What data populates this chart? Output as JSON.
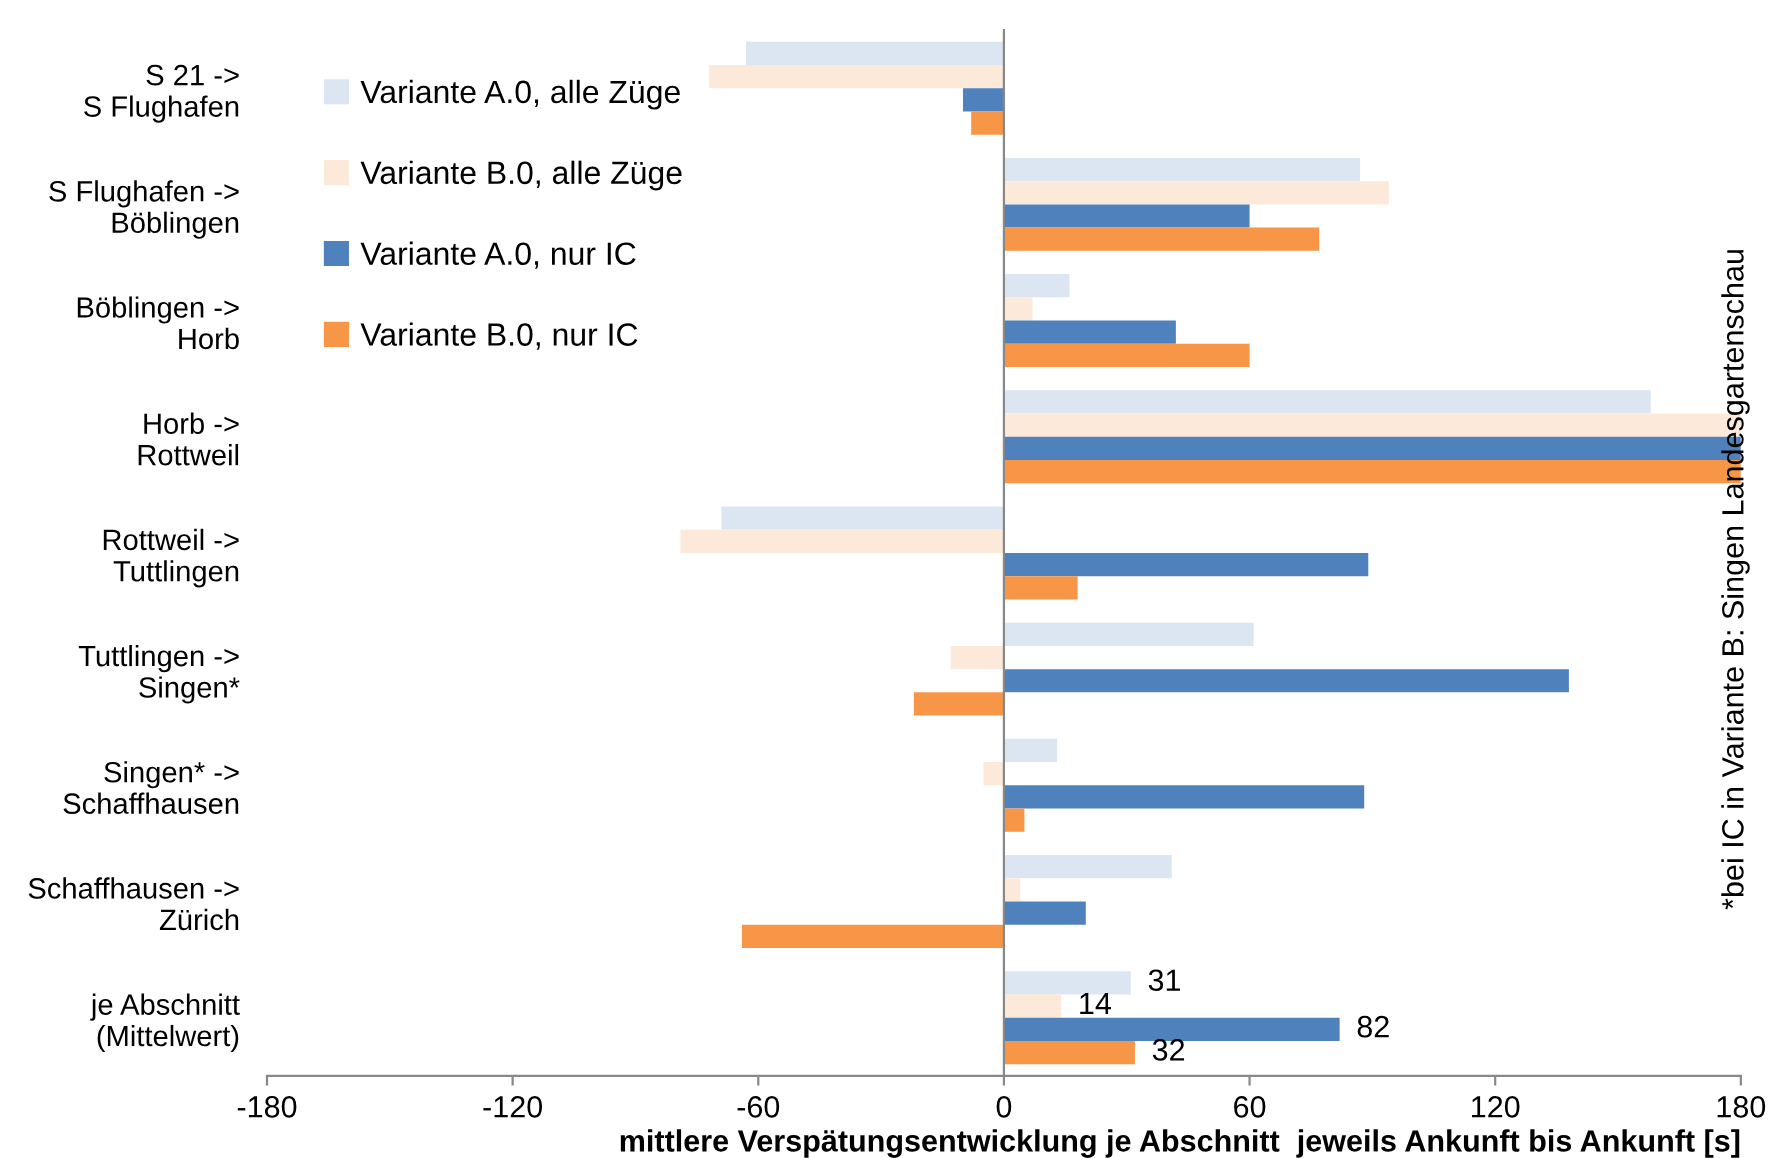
{
  "chart_data": {
    "type": "bar",
    "orientation": "horizontal",
    "xlabel": "mittlere Verspätungsentwicklung je Abschnitt  jeweils Ankunft bis Ankunft [s]",
    "categories": [
      "S 21 ->\nS Flughafen",
      "S Flughafen ->\nBöblingen",
      "Böblingen ->\nHorb",
      "Horb ->\nRottweil",
      "Rottweil ->\nTuttlingen",
      "Tuttlingen ->\nSingen*",
      "Singen* ->\nSchaffhausen",
      "Schaffhausen ->\nZürich",
      "je Abschnitt\n(Mittelwert)"
    ],
    "series": [
      {
        "name": "Variante A.0, alle Züge",
        "color": "#dce6f2",
        "values": [
          -63,
          87,
          16,
          158,
          -69,
          61,
          13,
          41,
          31
        ],
        "value_labels": [
          null,
          null,
          null,
          null,
          null,
          null,
          null,
          null,
          "31"
        ]
      },
      {
        "name": "Variante B.0, alle Züge",
        "color": "#fde9d9",
        "values": [
          -72,
          94,
          7,
          180,
          -79,
          -13,
          -5,
          4,
          14
        ],
        "value_labels": [
          null,
          null,
          null,
          null,
          null,
          null,
          null,
          null,
          "14"
        ]
      },
      {
        "name": "Variante A.0, nur IC",
        "color": "#4f81bd",
        "values": [
          -10,
          60,
          42,
          180,
          89,
          138,
          88,
          20,
          82
        ],
        "value_labels": [
          null,
          null,
          null,
          null,
          null,
          null,
          null,
          null,
          "82"
        ]
      },
      {
        "name": "Variante B.0, nur IC",
        "color": "#f79646",
        "values": [
          -8,
          77,
          60,
          180,
          18,
          -22,
          5,
          -64,
          32
        ],
        "value_labels": [
          null,
          null,
          null,
          null,
          null,
          null,
          null,
          null,
          "32"
        ]
      }
    ],
    "xlim": [
      -180,
      180
    ],
    "xticks": [
      -180,
      -120,
      -60,
      0,
      60,
      120,
      180
    ],
    "legend": "top left",
    "annotations": [
      "*bei IC in Variante B: Singen Landesgartenschau"
    ]
  }
}
